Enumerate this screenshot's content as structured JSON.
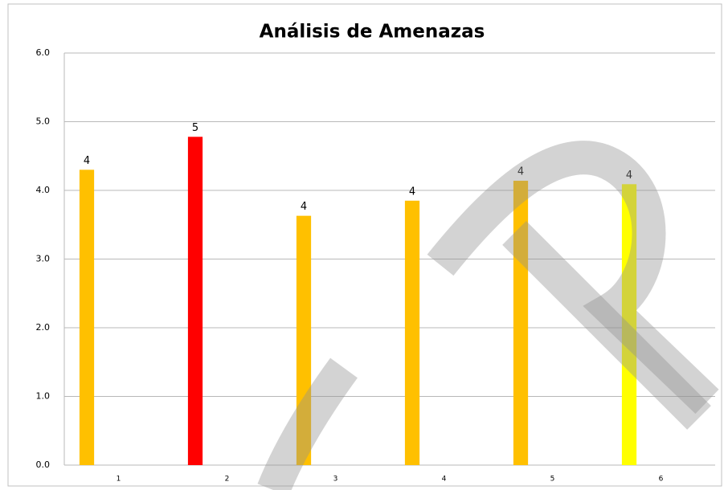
{
  "chart_data": {
    "type": "bar",
    "title": "Análisis de Amenazas",
    "categories": [
      "1",
      "2",
      "3",
      "4",
      "5",
      "6"
    ],
    "values": [
      4.3,
      4.78,
      3.63,
      3.85,
      4.14,
      4.09
    ],
    "value_labels": [
      "4",
      "5",
      "4",
      "4",
      "4",
      "4"
    ],
    "colors": [
      "#ffc000",
      "#ff0000",
      "#ffc000",
      "#ffc000",
      "#ffc000",
      "#ffff00"
    ],
    "ylim": [
      0,
      6
    ],
    "yticks": [
      {
        "value": 0,
        "label": "0.0"
      },
      {
        "value": 1,
        "label": "1.0"
      },
      {
        "value": 2,
        "label": "2.0"
      },
      {
        "value": 3,
        "label": "3.0"
      },
      {
        "value": 4,
        "label": "4.0"
      },
      {
        "value": 5,
        "label": "5.0"
      },
      {
        "value": 6,
        "label": "6.0"
      }
    ],
    "grid": true
  }
}
